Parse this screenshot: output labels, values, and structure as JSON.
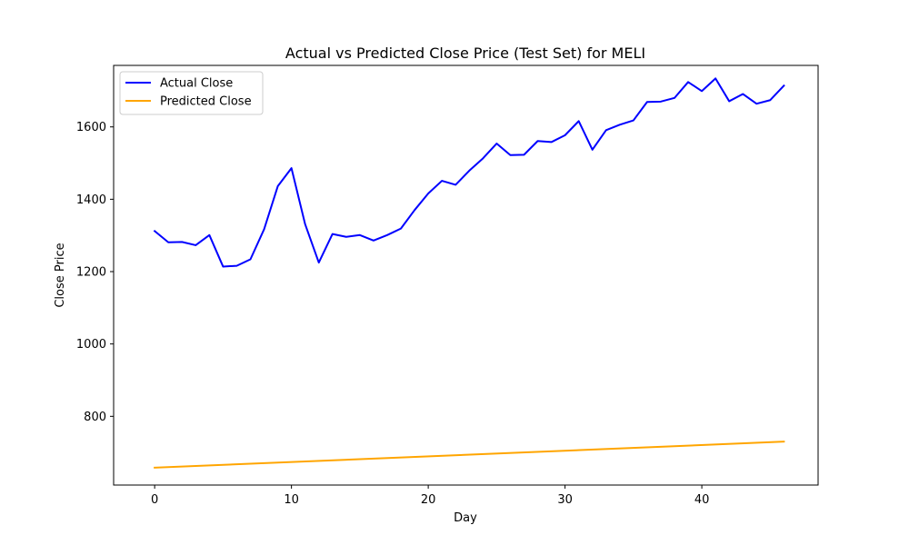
{
  "chart_data": {
    "type": "line",
    "title": "Actual vs Predicted Close Price (Test Set) for MELI",
    "xlabel": "Day",
    "ylabel": "Close Price",
    "xlim": [
      -3,
      48.5
    ],
    "ylim": [
      610,
      1770
    ],
    "xticks": [
      0,
      10,
      20,
      30,
      40
    ],
    "yticks": [
      800,
      1000,
      1200,
      1400,
      1600
    ],
    "grid": false,
    "legend_position": "upper-left",
    "series": [
      {
        "name": "Actual Close",
        "color": "#0000ff",
        "x": [
          0,
          1,
          2,
          3,
          4,
          5,
          6,
          7,
          8,
          9,
          10,
          11,
          12,
          13,
          14,
          15,
          16,
          17,
          18,
          19,
          20,
          21,
          22,
          23,
          24,
          25,
          26,
          27,
          28,
          29,
          30,
          31,
          32,
          33,
          34,
          35,
          36,
          37,
          38,
          39,
          40,
          41,
          42,
          43,
          44,
          45,
          46
        ],
        "values": [
          1312,
          1281,
          1282,
          1273,
          1301,
          1214,
          1216,
          1234,
          1317,
          1436,
          1486,
          1331,
          1225,
          1304,
          1296,
          1301,
          1286,
          1301,
          1319,
          1370,
          1416,
          1451,
          1440,
          1479,
          1513,
          1554,
          1522,
          1523,
          1561,
          1558,
          1577,
          1616,
          1537,
          1591,
          1606,
          1618,
          1669,
          1670,
          1680,
          1724,
          1699,
          1734,
          1671,
          1691,
          1664,
          1674,
          1714
        ]
      },
      {
        "name": "Predicted Close",
        "color": "#ffa500",
        "x": [
          0,
          46
        ],
        "values": [
          658,
          730
        ]
      }
    ]
  }
}
